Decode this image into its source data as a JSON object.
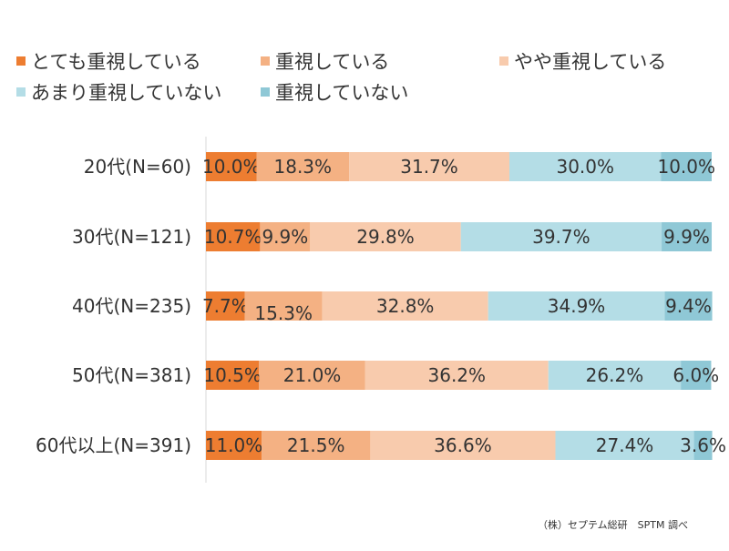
{
  "chart_data": {
    "type": "bar",
    "orientation": "horizontal",
    "stacked": true,
    "categories": [
      "20代(N=60)",
      "30代(N=121)",
      "40代(N=235)",
      "50代(N=381)",
      "60代以上(N=391)"
    ],
    "series": [
      {
        "name": "とても重視している",
        "color": "#ED7D31",
        "values": [
          10.0,
          10.7,
          7.7,
          10.5,
          11.0
        ],
        "labels": [
          "10.0%",
          "10.7%",
          "7.7%",
          "10.5%",
          "11.0%"
        ]
      },
      {
        "name": "重視している",
        "color": "#F4B183",
        "values": [
          18.3,
          9.9,
          15.3,
          21.0,
          21.5
        ],
        "labels": [
          "18.3%",
          "9.9%",
          "15.3%",
          "21.0%",
          "21.5%"
        ]
      },
      {
        "name": "やや重視している",
        "color": "#F8CBAD",
        "values": [
          31.7,
          29.8,
          32.8,
          36.2,
          36.6
        ],
        "labels": [
          "31.7%",
          "29.8%",
          "32.8%",
          "36.2%",
          "36.6%"
        ]
      },
      {
        "name": "あまり重視していない",
        "color": "#B4DDE6",
        "values": [
          30.0,
          39.7,
          34.9,
          26.2,
          27.4
        ],
        "labels": [
          "30.0%",
          "39.7%",
          "34.9%",
          "26.2%",
          "27.4%"
        ]
      },
      {
        "name": "重視していない",
        "color": "#8FC8D6",
        "values": [
          10.0,
          9.9,
          9.4,
          6.0,
          3.6
        ],
        "labels": [
          "10.0%",
          "9.9%",
          "9.4%",
          "6.0%",
          "3.6%"
        ]
      }
    ],
    "xlim": [
      0,
      100
    ],
    "legend": "top",
    "grid": false
  },
  "source_note": "（株）セプテム総研　SPTM 調べ"
}
